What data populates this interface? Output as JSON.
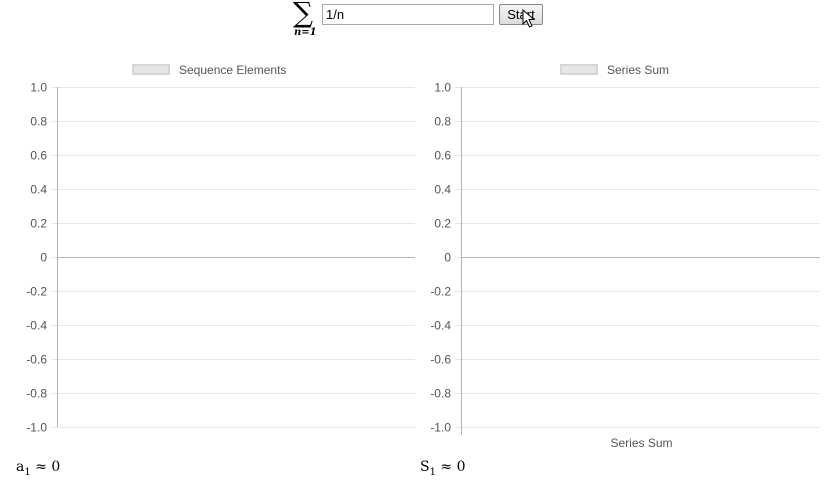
{
  "toolbar": {
    "sum_symbol": "∑",
    "sum_lower": "n=1",
    "expression_value": "1/n",
    "start_label": "Start"
  },
  "left_panel": {
    "legend": "Sequence Elements",
    "readout_var": "a",
    "readout_sub": "1",
    "readout_rest": " ≈ 0"
  },
  "right_panel": {
    "legend": "Series Sum",
    "xaxis_label": "Series Sum",
    "readout_var": "S",
    "readout_sub": "1",
    "readout_rest": " ≈ 0"
  },
  "chart_data": [
    {
      "type": "line",
      "series": [
        {
          "name": "Sequence Elements",
          "values": []
        }
      ],
      "yticks": [
        "1.0",
        "0.8",
        "0.6",
        "0.4",
        "0.2",
        "0",
        "-0.2",
        "-0.4",
        "-0.6",
        "-0.8",
        "-1.0"
      ],
      "ylim": [
        -1,
        1
      ],
      "xlabel": "",
      "grid": true,
      "legend_position": "top"
    },
    {
      "type": "line",
      "series": [
        {
          "name": "Series Sum",
          "values": []
        }
      ],
      "yticks": [
        "1.0",
        "0.8",
        "0.6",
        "0.4",
        "0.2",
        "0",
        "-0.2",
        "-0.4",
        "-0.6",
        "-0.8",
        "-1.0"
      ],
      "ylim": [
        -1,
        1
      ],
      "xlabel": "Series Sum",
      "grid": true,
      "legend_position": "top"
    }
  ],
  "colors": {
    "grid": "#e6e6e6",
    "zero_line": "#b4b4b4",
    "tick_text": "#555555"
  }
}
